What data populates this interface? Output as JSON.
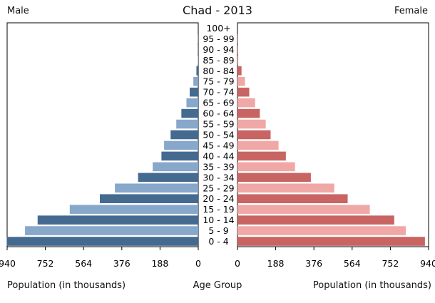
{
  "chart_data": {
    "type": "bar",
    "title": "Chad - 2013",
    "left_label": "Male",
    "right_label": "Female",
    "xlabel_left": "Population (in thousands)",
    "xlabel_center": "Age Group",
    "xlabel_right": "Population (in thousands)",
    "categories": [
      "100+",
      "95 - 99",
      "90 - 94",
      "85 - 89",
      "80 - 84",
      "75 - 79",
      "70 - 74",
      "65 - 69",
      "60 - 64",
      "55 - 59",
      "50 - 54",
      "45 - 49",
      "40 - 44",
      "35 - 39",
      "30 - 34",
      "25 - 29",
      "20 - 24",
      "15 - 19",
      "10 - 14",
      "5 - 9",
      "0 - 4"
    ],
    "series": [
      {
        "name": "Male",
        "values": [
          0,
          1,
          1,
          2,
          9,
          24,
          42,
          58,
          83,
          108,
          136,
          168,
          181,
          224,
          296,
          410,
          484,
          632,
          790,
          852,
          942
        ]
      },
      {
        "name": "Female",
        "values": [
          0,
          1,
          2,
          4,
          20,
          37,
          58,
          87,
          110,
          139,
          163,
          202,
          238,
          283,
          361,
          476,
          542,
          651,
          771,
          828,
          922
        ]
      }
    ],
    "x_ticks_left": [
      "940",
      "752",
      "564",
      "376",
      "188",
      "0"
    ],
    "x_ticks_right": [
      "0",
      "188",
      "376",
      "564",
      "752",
      "940"
    ],
    "xlim": [
      0,
      940
    ],
    "colors": {
      "male_dark": "#456a90",
      "male_light": "#87a7cb",
      "female_dark": "#c86462",
      "female_light": "#f0a8a6",
      "axis": "#000000"
    }
  }
}
